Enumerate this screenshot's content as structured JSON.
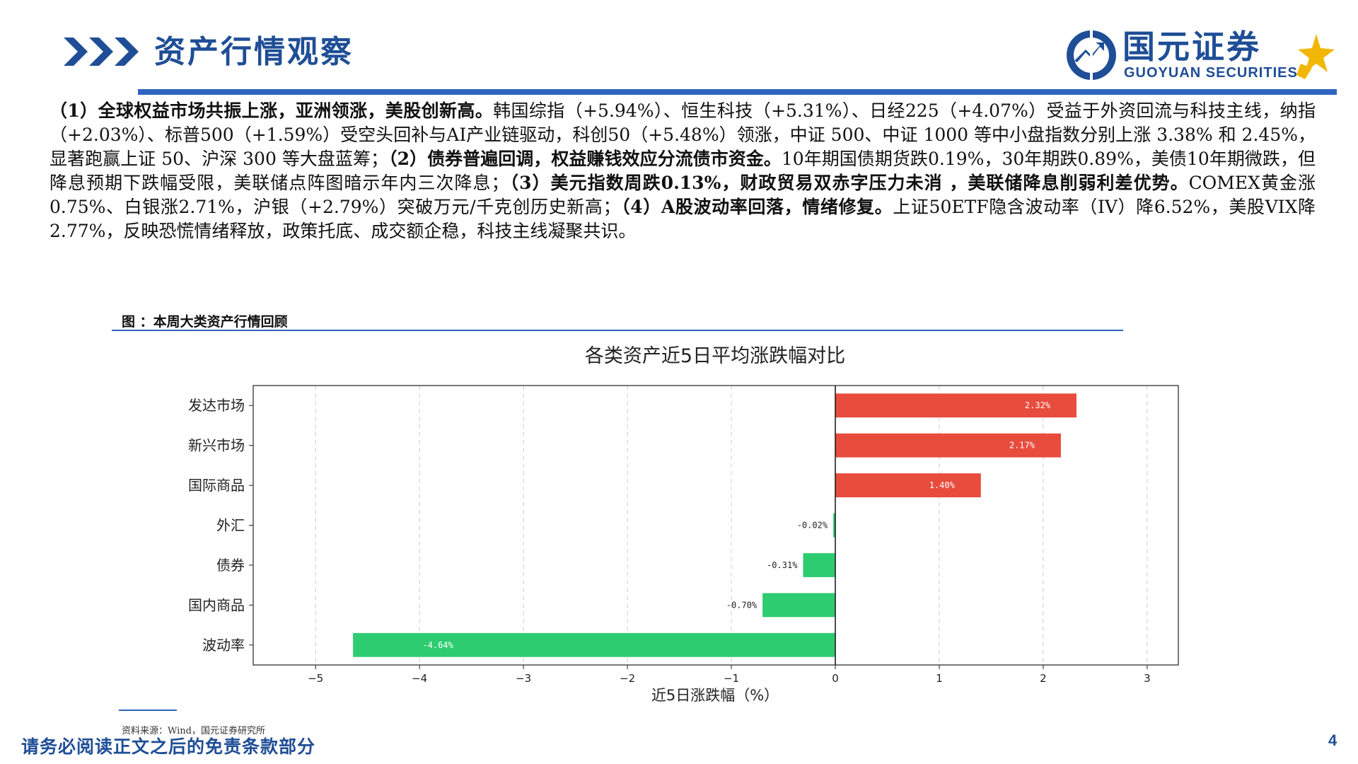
{
  "header": {
    "title": "资产行情观察",
    "logo": {
      "name_cn": "国元证券",
      "name_en": "GUOYUAN SECURITIES"
    },
    "accent_color": "#1f4e96",
    "arrow_icon": "triple-chevron-right-icon"
  },
  "summary": {
    "p1_bold": "（1）全球权益市场共振上涨，亚洲领涨，美股创新高。",
    "p1_text": "韩国综指（+5.94%）、恒生科技（+5.31%）、日经225（+4.07%）受益于外资回流与科技主线，纳指（+2.03%）、标普500（+1.59%）受空头回补与AI产业链驱动，科创50（+5.48%）领涨，中证 500、中证 1000 等中小盘指数分别上涨 3.38% 和 2.45%，显著跑赢上证 50、沪深 300 等大盘蓝筹；",
    "p2_bold": "（2）债券普遍回调，权益赚钱效应分流债市资金。",
    "p2_text": "10年期国债期货跌0.19%，30年期跌0.89%，美债10年期微跌，但降息预期下跌幅受限，美联储点阵图暗示年内三次降息；",
    "p3_bold": "（3）美元指数周跌0.13%，财政贸易双赤字压力未消 ，美联储降息削弱利差优势。",
    "p3_text": "COMEX黄金涨0.75%、白银涨2.71%，沪银（+2.79%）突破万元/千克创历史新高；",
    "p4_bold": "（4）A股波动率回落，情绪修复。",
    "p4_text": "上证50ETF隐含波动率（IV）降6.52%，美股VIX降2.77%，反映恐慌情绪释放，政策托底、成交额企稳，科技主线凝聚共识。"
  },
  "figure": {
    "caption": "图 ：本周大类资产行情回顾",
    "source": "资料来源：Wind，国元证券研究所"
  },
  "chart_data": {
    "type": "bar",
    "orientation": "horizontal",
    "title": "各类资产近5日平均涨跌幅对比",
    "xlabel": "近5日涨跌幅（%）",
    "ylabel": "",
    "categories": [
      "发达市场",
      "新兴市场",
      "国际商品",
      "外汇",
      "债券",
      "国内商品",
      "波动率"
    ],
    "values": [
      2.32,
      2.17,
      1.4,
      -0.02,
      -0.31,
      -0.7,
      -4.64
    ],
    "data_labels": [
      "2.32%",
      "2.17%",
      "1.40%",
      "-0.02%",
      "-0.31%",
      "-0.70%",
      "-4.64%"
    ],
    "xlim": [
      -5.6,
      3.3
    ],
    "xticks": [
      -5,
      -4,
      -3,
      -2,
      -1,
      0,
      1,
      2,
      3
    ],
    "grid": true,
    "positive_color": "#e74c3c",
    "negative_color": "#2ecc71"
  },
  "footer": {
    "disclaimer": "请务必阅读正文之后的免责条款部分",
    "page_number": "4"
  }
}
